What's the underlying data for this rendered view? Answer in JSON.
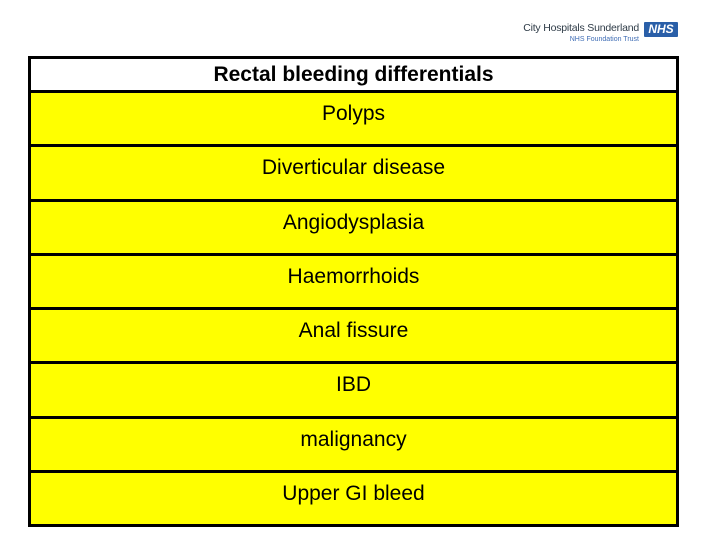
{
  "logo": {
    "trust_name": "City Hospitals Sunderland",
    "nhs_mark": "NHS",
    "tagline": "NHS Foundation Trust"
  },
  "table": {
    "title": "Rectal bleeding differentials",
    "rows": [
      "Polyps",
      "Diverticular disease",
      "Angiodysplasia",
      "Haemorrhoids",
      "Anal fissure",
      "IBD",
      "malignancy",
      "Upper GI bleed"
    ]
  },
  "colors": {
    "background": "#ffffff",
    "row_fill": "#ffff00",
    "border": "#000000",
    "title_bg": "#ffffff",
    "text": "#000000",
    "nhs_blue": "#2a5fa8",
    "trust_name": "#2e3b47",
    "tagline_blue": "#3f6db5"
  }
}
